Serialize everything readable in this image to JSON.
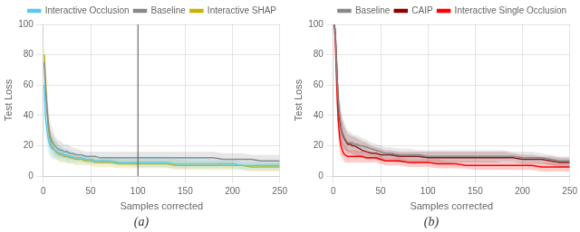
{
  "chart_data": [
    {
      "type": "line",
      "xlabel": "Samples corrected",
      "ylabel": "Test Loss",
      "caption": "(a)",
      "xlim": [
        0,
        250
      ],
      "ylim": [
        0,
        100
      ],
      "xticks": [
        0,
        50,
        100,
        150,
        200,
        250
      ],
      "yticks": [
        0,
        20,
        40,
        60,
        80,
        100
      ],
      "grid": true,
      "legend": "upper right",
      "vlines": [
        100
      ],
      "x": [
        1,
        2,
        3,
        4,
        5,
        6,
        7,
        8,
        9,
        10,
        12,
        15,
        18,
        20,
        22,
        25,
        28,
        30,
        35,
        40,
        45,
        50,
        55,
        60,
        70,
        80,
        90,
        100,
        110,
        120,
        130,
        140,
        150,
        160,
        170,
        180,
        190,
        200,
        210,
        220,
        230,
        240,
        250
      ],
      "series": [
        {
          "name": "Interactive Occlusion",
          "color": "#5bc8f0",
          "values": [
            60,
            40,
            35,
            30,
            25,
            22,
            20,
            19,
            18,
            18,
            17,
            16,
            15,
            15,
            14,
            14,
            13,
            13,
            12,
            12,
            11,
            11,
            10,
            10,
            10,
            9,
            9,
            9,
            9,
            9,
            9,
            8,
            8,
            8,
            8,
            8,
            8,
            8,
            7,
            7,
            7,
            7,
            7
          ],
          "upper": [
            75,
            55,
            48,
            42,
            36,
            32,
            28,
            27,
            26,
            25,
            24,
            22,
            20,
            19,
            18,
            18,
            17,
            16,
            15,
            14,
            14,
            13,
            13,
            13,
            13,
            12,
            12,
            13,
            13,
            13,
            13,
            12,
            12,
            12,
            12,
            11,
            11,
            11,
            10,
            10,
            10,
            10,
            10
          ],
          "lower": [
            45,
            28,
            24,
            20,
            16,
            14,
            13,
            12,
            11,
            11,
            11,
            11,
            10,
            10,
            10,
            9,
            9,
            9,
            9,
            9,
            8,
            8,
            8,
            8,
            8,
            7,
            7,
            6,
            6,
            6,
            6,
            5,
            5,
            5,
            5,
            5,
            5,
            5,
            4,
            4,
            4,
            4,
            4
          ]
        },
        {
          "name": "Baseline",
          "color": "#888888",
          "values": [
            75,
            60,
            52,
            43,
            36,
            31,
            27,
            25,
            23,
            22,
            20,
            18,
            17,
            17,
            16,
            16,
            15,
            15,
            14,
            14,
            13,
            13,
            13,
            12,
            12,
            12,
            12,
            12,
            12,
            12,
            12,
            12,
            12,
            12,
            12,
            12,
            11,
            11,
            11,
            11,
            10,
            10,
            10
          ],
          "upper": [
            85,
            72,
            65,
            55,
            47,
            41,
            37,
            34,
            32,
            30,
            27,
            24,
            23,
            22,
            21,
            21,
            20,
            19,
            18,
            17,
            16,
            16,
            16,
            16,
            16,
            16,
            16,
            16,
            16,
            16,
            16,
            16,
            16,
            16,
            16,
            16,
            15,
            15,
            15,
            14,
            14,
            14,
            14
          ],
          "lower": [
            65,
            50,
            42,
            33,
            27,
            23,
            20,
            18,
            17,
            16,
            14,
            13,
            12,
            12,
            12,
            11,
            11,
            11,
            11,
            11,
            10,
            10,
            10,
            9,
            9,
            9,
            9,
            9,
            9,
            9,
            9,
            9,
            9,
            9,
            9,
            9,
            8,
            8,
            8,
            8,
            7,
            7,
            7
          ]
        },
        {
          "name": "Interactive SHAP",
          "color": "#c8b400",
          "values": [
            80,
            65,
            53,
            42,
            33,
            28,
            24,
            22,
            20,
            19,
            17,
            15,
            14,
            14,
            13,
            13,
            12,
            12,
            11,
            11,
            10,
            10,
            9,
            9,
            9,
            8,
            8,
            8,
            8,
            8,
            8,
            7,
            7,
            7,
            7,
            7,
            7,
            7,
            7,
            6,
            6,
            6,
            6
          ],
          "upper": [
            92,
            78,
            66,
            54,
            44,
            37,
            32,
            30,
            28,
            27,
            24,
            21,
            19,
            18,
            17,
            17,
            16,
            15,
            14,
            13,
            13,
            12,
            12,
            12,
            12,
            11,
            11,
            11,
            11,
            11,
            11,
            11,
            10,
            10,
            10,
            10,
            10,
            10,
            9,
            9,
            9,
            9,
            9
          ],
          "lower": [
            68,
            53,
            43,
            33,
            24,
            20,
            17,
            15,
            14,
            13,
            12,
            10,
            9,
            9,
            9,
            8,
            8,
            8,
            7,
            7,
            7,
            7,
            6,
            6,
            6,
            5,
            5,
            5,
            5,
            5,
            5,
            4,
            4,
            4,
            4,
            4,
            4,
            4,
            4,
            3,
            3,
            3,
            3
          ]
        }
      ]
    },
    {
      "type": "line",
      "xlabel": "Samples corrected",
      "ylabel": "Test Loss",
      "caption": "(b)",
      "xlim": [
        0,
        250
      ],
      "ylim": [
        0,
        100
      ],
      "xticks": [
        0,
        50,
        100,
        150,
        200,
        250
      ],
      "yticks": [
        0,
        20,
        40,
        60,
        80,
        100
      ],
      "grid": true,
      "legend": "upper right",
      "x": [
        1,
        2,
        3,
        4,
        5,
        6,
        7,
        8,
        9,
        10,
        12,
        15,
        18,
        20,
        22,
        25,
        28,
        30,
        35,
        40,
        45,
        50,
        55,
        60,
        70,
        80,
        90,
        100,
        110,
        120,
        130,
        140,
        150,
        160,
        170,
        180,
        190,
        200,
        210,
        220,
        230,
        240,
        250
      ],
      "series": [
        {
          "name": "Baseline",
          "color": "#888888",
          "values": [
            100,
            95,
            80,
            65,
            52,
            44,
            38,
            34,
            30,
            28,
            25,
            22,
            22,
            22,
            21,
            21,
            20,
            20,
            19,
            18,
            17,
            16,
            15,
            15,
            14,
            14,
            14,
            13,
            13,
            13,
            13,
            13,
            13,
            13,
            13,
            13,
            13,
            12,
            12,
            12,
            11,
            10,
            10
          ],
          "upper": [
            100,
            100,
            90,
            78,
            64,
            56,
            50,
            45,
            41,
            38,
            35,
            30,
            29,
            28,
            27,
            27,
            26,
            25,
            24,
            22,
            21,
            20,
            19,
            19,
            18,
            18,
            17,
            17,
            17,
            17,
            17,
            17,
            17,
            17,
            17,
            17,
            16,
            16,
            16,
            15,
            14,
            13,
            13
          ],
          "lower": [
            100,
            88,
            70,
            55,
            43,
            34,
            28,
            25,
            22,
            20,
            18,
            16,
            16,
            16,
            16,
            15,
            15,
            15,
            15,
            14,
            13,
            12,
            12,
            12,
            11,
            11,
            11,
            10,
            10,
            10,
            10,
            10,
            10,
            10,
            10,
            10,
            10,
            9,
            9,
            9,
            8,
            7,
            7
          ]
        },
        {
          "name": "CAIP",
          "color": "#8B0000",
          "values": [
            100,
            95,
            80,
            65,
            50,
            42,
            36,
            32,
            29,
            27,
            24,
            21,
            21,
            20,
            20,
            19,
            18,
            17,
            16,
            15,
            15,
            14,
            14,
            14,
            13,
            13,
            13,
            12,
            12,
            12,
            12,
            12,
            12,
            12,
            12,
            12,
            12,
            11,
            11,
            11,
            10,
            9,
            9
          ],
          "upper": [
            100,
            100,
            90,
            77,
            62,
            53,
            46,
            42,
            38,
            36,
            32,
            28,
            27,
            26,
            26,
            25,
            24,
            23,
            22,
            20,
            19,
            18,
            17,
            17,
            16,
            16,
            16,
            16,
            16,
            16,
            16,
            16,
            16,
            16,
            16,
            16,
            15,
            14,
            14,
            13,
            13,
            12,
            12
          ],
          "lower": [
            100,
            88,
            70,
            55,
            40,
            33,
            27,
            24,
            21,
            19,
            17,
            15,
            15,
            14,
            14,
            13,
            13,
            12,
            11,
            11,
            11,
            10,
            10,
            10,
            9,
            9,
            9,
            9,
            8,
            8,
            9,
            9,
            9,
            9,
            9,
            9,
            9,
            8,
            8,
            8,
            7,
            6,
            6
          ]
        },
        {
          "name": "Interactive Single Occlusion",
          "color": "#ff0000",
          "values": [
            100,
            90,
            70,
            52,
            38,
            30,
            24,
            20,
            18,
            16,
            14,
            13,
            13,
            13,
            13,
            13,
            13,
            13,
            12,
            12,
            12,
            11,
            10,
            10,
            10,
            9,
            9,
            9,
            8,
            8,
            8,
            7,
            7,
            7,
            7,
            7,
            7,
            7,
            7,
            6,
            6,
            6,
            6
          ],
          "upper": [
            100,
            100,
            85,
            67,
            52,
            42,
            36,
            30,
            27,
            23,
            20,
            18,
            17,
            17,
            17,
            17,
            16,
            16,
            15,
            14,
            14,
            13,
            12,
            12,
            12,
            11,
            11,
            11,
            11,
            10,
            10,
            10,
            10,
            10,
            10,
            9,
            9,
            9,
            9,
            9,
            9,
            8,
            8
          ],
          "lower": [
            100,
            80,
            56,
            40,
            26,
            20,
            15,
            13,
            12,
            11,
            9,
            9,
            9,
            9,
            9,
            9,
            9,
            9,
            9,
            9,
            9,
            8,
            7,
            7,
            7,
            6,
            6,
            6,
            5,
            5,
            5,
            5,
            4,
            4,
            4,
            4,
            4,
            4,
            4,
            3,
            3,
            3,
            3
          ]
        }
      ]
    }
  ]
}
